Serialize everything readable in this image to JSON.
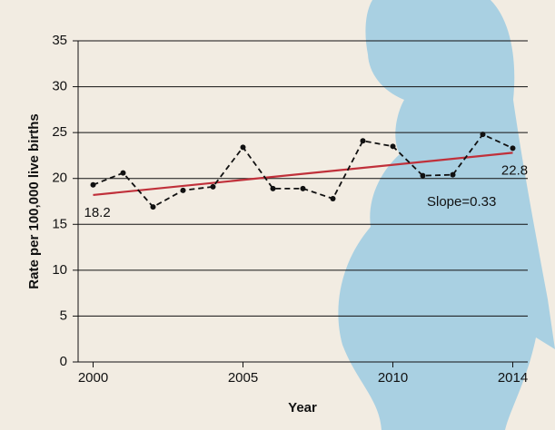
{
  "chart_data": {
    "type": "line",
    "x_label": "Year",
    "y_label": "Rate per 100,000 live births",
    "x": [
      2000,
      2001,
      2002,
      2003,
      2004,
      2005,
      2006,
      2007,
      2008,
      2009,
      2010,
      2011,
      2012,
      2013,
      2014
    ],
    "series": [
      {
        "color": "#111111",
        "values": [
          19.3,
          20.6,
          16.9,
          18.7,
          19.1,
          23.4,
          18.9,
          18.9,
          17.8,
          24.1,
          23.5,
          20.3,
          20.4,
          24.8,
          23.3
        ]
      }
    ],
    "trend": {
      "color": "#c0303a",
      "x": [
        2000,
        2014
      ],
      "values": [
        18.2,
        22.8
      ]
    },
    "annotation": "Slope=0.33",
    "xlim": [
      1999.5,
      2014.5
    ],
    "xticks": [
      2000,
      2005,
      2010,
      2014
    ],
    "ylim": [
      0,
      35
    ],
    "yticks": [
      0,
      5,
      10,
      15,
      20,
      25,
      30,
      35
    ],
    "grid": true
  }
}
